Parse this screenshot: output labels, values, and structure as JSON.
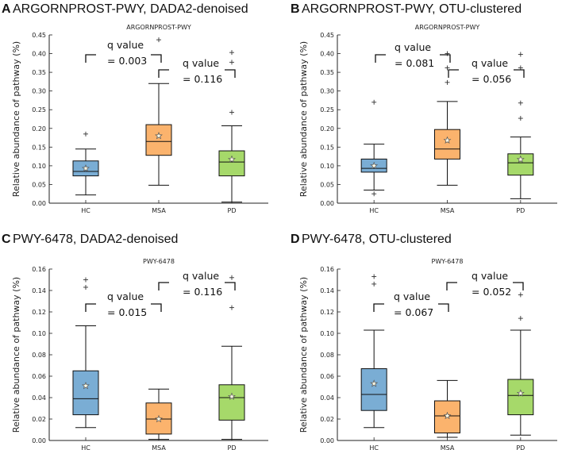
{
  "figure_colors": {
    "HC": "#7aadd4",
    "MSA": "#fbb36d",
    "PD": "#a6d96a"
  },
  "chart_data": [
    {
      "panel": "A",
      "type": "box",
      "header": "ARGORNPROST-PWY, DADA2-denoised",
      "title": "ARGORNPROST-PWY",
      "ylabel": "Relative abundance of pathway (%)",
      "categories": [
        "HC",
        "MSA",
        "PD"
      ],
      "ylim": [
        0,
        0.45
      ],
      "yticks": [
        "0.00",
        "0.05",
        "0.10",
        "0.15",
        "0.20",
        "0.25",
        "0.30",
        "0.35",
        "0.40",
        "0.45"
      ],
      "boxes": [
        {
          "name": "HC",
          "whislo": 0.022,
          "q1": 0.073,
          "med": 0.085,
          "q3": 0.113,
          "whishi": 0.145,
          "mean": 0.093,
          "fliers": [
            0.185
          ]
        },
        {
          "name": "MSA",
          "whislo": 0.048,
          "q1": 0.128,
          "med": 0.165,
          "q3": 0.21,
          "whishi": 0.32,
          "mean": 0.18,
          "fliers": [
            0.437
          ]
        },
        {
          "name": "PD",
          "whislo": 0.003,
          "q1": 0.073,
          "med": 0.11,
          "q3": 0.14,
          "whishi": 0.207,
          "mean": 0.117,
          "fliers": [
            0.243,
            0.377,
            0.403
          ]
        }
      ],
      "annotations": [
        {
          "text": "q value",
          "value": "= 0.003"
        },
        {
          "text": "q value",
          "value": "= 0.116"
        }
      ]
    },
    {
      "panel": "B",
      "type": "box",
      "header": "ARGORNPROST-PWY, OTU-clustered",
      "title": "ARGORNPROST-PWY",
      "ylabel": "Relative abundance of pathway (%)",
      "categories": [
        "HC",
        "MSA",
        "PD"
      ],
      "ylim": [
        0,
        0.45
      ],
      "yticks": [
        "0.00",
        "0.05",
        "0.10",
        "0.15",
        "0.20",
        "0.25",
        "0.30",
        "0.35",
        "0.40",
        "0.45"
      ],
      "boxes": [
        {
          "name": "HC",
          "whislo": 0.035,
          "q1": 0.083,
          "med": 0.093,
          "q3": 0.118,
          "whishi": 0.158,
          "mean": 0.1,
          "fliers": [
            0.025,
            0.27
          ]
        },
        {
          "name": "MSA",
          "whislo": 0.048,
          "q1": 0.118,
          "med": 0.145,
          "q3": 0.197,
          "whishi": 0.272,
          "mean": 0.168,
          "fliers": [
            0.323,
            0.362,
            0.4
          ]
        },
        {
          "name": "PD",
          "whislo": 0.012,
          "q1": 0.075,
          "med": 0.108,
          "q3": 0.132,
          "whishi": 0.177,
          "mean": 0.117,
          "fliers": [
            0.227,
            0.268,
            0.362,
            0.398
          ]
        }
      ],
      "annotations": [
        {
          "text": "q value",
          "value": "= 0.081"
        },
        {
          "text": "q value",
          "value": "= 0.056"
        }
      ]
    },
    {
      "panel": "C",
      "type": "box",
      "header": "PWY-6478, DADA2-denoised",
      "title": "PWY-6478",
      "ylabel": "Relative abundance of pathway (%)",
      "categories": [
        "HC",
        "MSA",
        "PD"
      ],
      "ylim": [
        0,
        0.16
      ],
      "yticks": [
        "0.00",
        "0.02",
        "0.04",
        "0.06",
        "0.08",
        "0.10",
        "0.12",
        "0.14",
        "0.16"
      ],
      "boxes": [
        {
          "name": "HC",
          "whislo": 0.012,
          "q1": 0.024,
          "med": 0.039,
          "q3": 0.065,
          "whishi": 0.107,
          "mean": 0.051,
          "fliers": [
            0.143,
            0.15
          ]
        },
        {
          "name": "MSA",
          "whislo": 0.001,
          "q1": 0.006,
          "med": 0.02,
          "q3": 0.035,
          "whishi": 0.048,
          "mean": 0.02,
          "fliers": []
        },
        {
          "name": "PD",
          "whislo": 0.001,
          "q1": 0.019,
          "med": 0.04,
          "q3": 0.052,
          "whishi": 0.088,
          "mean": 0.041,
          "fliers": [
            0.124,
            0.152
          ]
        }
      ],
      "annotations": [
        {
          "text": "q value",
          "value": "= 0.015"
        },
        {
          "text": "q value",
          "value": "= 0.116"
        }
      ]
    },
    {
      "panel": "D",
      "type": "box",
      "header": "PWY-6478, OTU-clustered",
      "title": "PWY-6478",
      "ylabel": "Relative abundance of pathway (%)",
      "categories": [
        "HC",
        "MSA",
        "PD"
      ],
      "ylim": [
        0,
        0.16
      ],
      "yticks": [
        "0.00",
        "0.02",
        "0.04",
        "0.06",
        "0.08",
        "0.10",
        "0.12",
        "0.14",
        "0.16"
      ],
      "boxes": [
        {
          "name": "HC",
          "whislo": 0.012,
          "q1": 0.028,
          "med": 0.043,
          "q3": 0.067,
          "whishi": 0.103,
          "mean": 0.053,
          "fliers": [
            0.146,
            0.153
          ]
        },
        {
          "name": "MSA",
          "whislo": 0.003,
          "q1": 0.007,
          "med": 0.023,
          "q3": 0.037,
          "whishi": 0.056,
          "mean": 0.023,
          "fliers": []
        },
        {
          "name": "PD",
          "whislo": 0.005,
          "q1": 0.024,
          "med": 0.042,
          "q3": 0.057,
          "whishi": 0.103,
          "mean": 0.044,
          "fliers": [
            0.114,
            0.136
          ]
        }
      ],
      "annotations": [
        {
          "text": "q value",
          "value": "= 0.067"
        },
        {
          "text": "q value",
          "value": "= 0.052"
        }
      ]
    }
  ]
}
